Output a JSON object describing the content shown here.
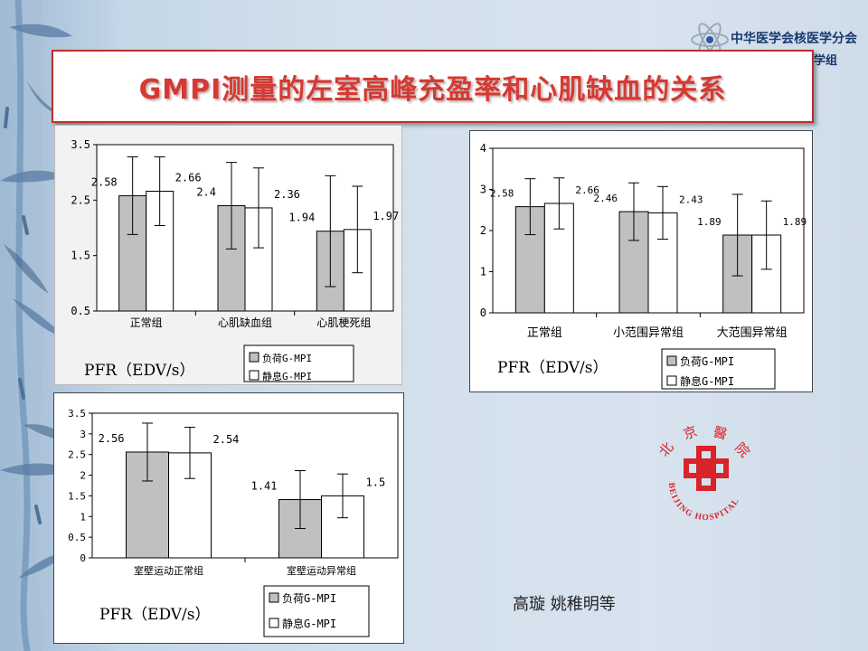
{
  "slide": {
    "title": "GMPI测量的左室高峰充盈率和心肌缺血的关系",
    "society": "中华医学会核医学分会",
    "society_suffix": "学组",
    "credit": "高璇 姚稚明等",
    "hospital_logo_text": "BEIJING HOSPITAL",
    "hospital_logo_chars": [
      "北",
      "京",
      "醫",
      "院"
    ]
  },
  "colors": {
    "title_text": "#d43a33",
    "title_border": "#b8302c",
    "stress_bar": "#c0c0c0",
    "rest_bar": "#ffffff",
    "logo_red": "#d8232a"
  },
  "chart_data": [
    {
      "type": "bar",
      "categories": [
        "正常组",
        "心肌缺血组",
        "心肌梗死组"
      ],
      "series": [
        {
          "name": "负荷G-MPI",
          "values": [
            2.58,
            2.4,
            1.94
          ],
          "error": [
            0.7,
            0.78,
            1.0
          ]
        },
        {
          "name": "静息G-MPI",
          "values": [
            2.66,
            2.36,
            1.97
          ],
          "error": [
            0.62,
            0.72,
            0.78
          ]
        }
      ],
      "value_labels": [
        [
          "2.58",
          "2.4",
          "1.94"
        ],
        [
          "2.66",
          "2.36",
          "1.97"
        ]
      ],
      "ylim": [
        0.5,
        3.5
      ],
      "yticks": [
        "0.5",
        "1.5",
        "2.5",
        "3.5"
      ],
      "ylabel_caption": "PFR（EDV/s）",
      "grid": false,
      "legend": "bottom-right"
    },
    {
      "type": "bar",
      "categories": [
        "正常组",
        "小范围异常组",
        "大范围异常组"
      ],
      "series": [
        {
          "name": "负荷G-MPI",
          "values": [
            2.58,
            2.46,
            1.89
          ],
          "error": [
            0.68,
            0.7,
            0.99
          ]
        },
        {
          "name": "静息G-MPI",
          "values": [
            2.66,
            2.43,
            1.89
          ],
          "error": [
            0.62,
            0.64,
            0.83
          ]
        }
      ],
      "value_labels": [
        [
          "2.58",
          "2.46",
          "1.89"
        ],
        [
          "2.66",
          "2.43",
          "1.89"
        ]
      ],
      "ylim": [
        0,
        4
      ],
      "yticks": [
        "0",
        "1",
        "2",
        "3",
        "4"
      ],
      "ylabel_caption": "PFR（EDV/s）",
      "grid": false,
      "legend": "bottom-right"
    },
    {
      "type": "bar",
      "categories": [
        "室壁运动正常组",
        "室壁运动异常组"
      ],
      "series": [
        {
          "name": "负荷G-MPI",
          "values": [
            2.56,
            1.41
          ],
          "error": [
            0.7,
            0.7
          ]
        },
        {
          "name": "静息G-MPI",
          "values": [
            2.54,
            1.5
          ],
          "error": [
            0.62,
            0.53
          ]
        }
      ],
      "value_labels": [
        [
          "2.56",
          "1.41"
        ],
        [
          "2.54",
          "1.5"
        ]
      ],
      "ylim": [
        0,
        3.5
      ],
      "yticks": [
        "0",
        "0.5",
        "1",
        "1.5",
        "2",
        "2.5",
        "3",
        "3.5"
      ],
      "ylabel_caption": "PFR（EDV/s）",
      "grid": false,
      "legend": "bottom-right"
    }
  ]
}
